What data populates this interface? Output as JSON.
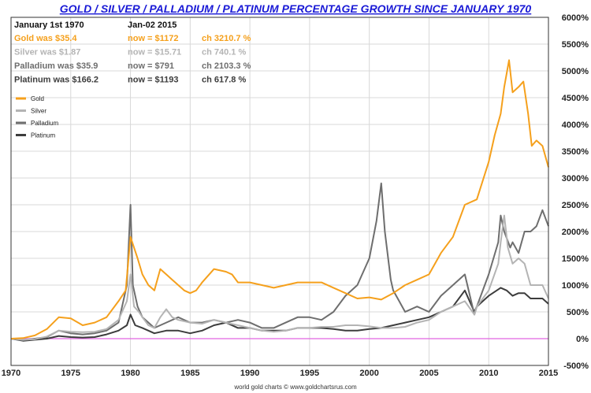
{
  "chart_data": {
    "type": "line",
    "title": "GOLD / SILVER / PALLADIUM / PLATINUM PERCENTAGE GROWTH SINCE JANUARY 1970",
    "footer": "world gold charts © www.goldchartsrus.com",
    "xlabel": "",
    "ylabel": "",
    "xlim": [
      1970,
      2015
    ],
    "ylim": [
      -500,
      6000
    ],
    "x_ticks": [
      "1970",
      "1975",
      "1980",
      "1985",
      "1990",
      "1995",
      "2000",
      "2005",
      "2010",
      "2015"
    ],
    "y_ticks": [
      "6000%",
      "5500%",
      "5000%",
      "4500%",
      "4000%",
      "3500%",
      "3000%",
      "2500%",
      "2000%",
      "1500%",
      "1000%",
      "500%",
      "0%",
      "-500%"
    ],
    "info_header": {
      "start": "January 1st 1970",
      "end": "Jan-02  2015"
    },
    "info_rows": [
      {
        "was": "Gold was $35.4",
        "now": "now = $1172",
        "ch": "ch 3210.7 %",
        "color": "#f5a01c"
      },
      {
        "was": "Silver was $1.87",
        "now": "now = $15.71",
        "ch": "ch 740.1 %",
        "color": "#b4b4b4"
      },
      {
        "was": "Palladium was $35.9",
        "now": "now = $791",
        "ch": "ch 2103.3 %",
        "color": "#6e6e6e"
      },
      {
        "was": "Platinum was $166.2",
        "now": "now = $1193",
        "ch": "ch 617.8 %",
        "color": "#3c3c3c"
      }
    ],
    "legend": [
      "Gold",
      "Silver",
      "Palladium",
      "Platinum"
    ],
    "zero_line_color": "#e066e0",
    "series": [
      {
        "name": "Gold",
        "color": "#f5a01c",
        "points": [
          [
            1970,
            0
          ],
          [
            1971,
            10
          ],
          [
            1972,
            60
          ],
          [
            1973,
            180
          ],
          [
            1974,
            400
          ],
          [
            1975,
            380
          ],
          [
            1976,
            250
          ],
          [
            1977,
            300
          ],
          [
            1978,
            400
          ],
          [
            1979,
            700
          ],
          [
            1979.6,
            900
          ],
          [
            1980.0,
            1900
          ],
          [
            1980.3,
            1700
          ],
          [
            1980.6,
            1500
          ],
          [
            1981,
            1200
          ],
          [
            1981.5,
            1000
          ],
          [
            1982,
            900
          ],
          [
            1982.5,
            1300
          ],
          [
            1983,
            1200
          ],
          [
            1983.5,
            1100
          ],
          [
            1984,
            1000
          ],
          [
            1984.5,
            900
          ],
          [
            1985,
            850
          ],
          [
            1985.5,
            900
          ],
          [
            1986,
            1050
          ],
          [
            1987,
            1300
          ],
          [
            1988,
            1250
          ],
          [
            1988.5,
            1200
          ],
          [
            1989,
            1050
          ],
          [
            1990,
            1050
          ],
          [
            1991,
            1000
          ],
          [
            1992,
            950
          ],
          [
            1993,
            1000
          ],
          [
            1994,
            1050
          ],
          [
            1995,
            1050
          ],
          [
            1996,
            1050
          ],
          [
            1997,
            950
          ],
          [
            1998,
            850
          ],
          [
            1999,
            750
          ],
          [
            2000,
            770
          ],
          [
            2001,
            730
          ],
          [
            2002,
            850
          ],
          [
            2003,
            1000
          ],
          [
            2004,
            1100
          ],
          [
            2005,
            1200
          ],
          [
            2006,
            1600
          ],
          [
            2007,
            1900
          ],
          [
            2008,
            2500
          ],
          [
            2009,
            2600
          ],
          [
            2010,
            3300
          ],
          [
            2010.5,
            3800
          ],
          [
            2011,
            4200
          ],
          [
            2011.3,
            4700
          ],
          [
            2011.7,
            5200
          ],
          [
            2012,
            4600
          ],
          [
            2012.5,
            4700
          ],
          [
            2012.9,
            4800
          ],
          [
            2013.3,
            4200
          ],
          [
            2013.6,
            3600
          ],
          [
            2014,
            3700
          ],
          [
            2014.5,
            3600
          ],
          [
            2015,
            3200
          ]
        ]
      },
      {
        "name": "Silver",
        "color": "#b4b4b4",
        "points": [
          [
            1970,
            0
          ],
          [
            1971,
            -20
          ],
          [
            1972,
            -10
          ],
          [
            1973,
            40
          ],
          [
            1974,
            150
          ],
          [
            1975,
            130
          ],
          [
            1976,
            120
          ],
          [
            1977,
            130
          ],
          [
            1978,
            180
          ],
          [
            1979,
            350
          ],
          [
            1979.7,
            700
          ],
          [
            1980.0,
            1200
          ],
          [
            1980.3,
            600
          ],
          [
            1980.7,
            500
          ],
          [
            1981,
            400
          ],
          [
            1981.5,
            250
          ],
          [
            1982,
            200
          ],
          [
            1982.5,
            400
          ],
          [
            1983,
            550
          ],
          [
            1983.5,
            400
          ],
          [
            1984,
            350
          ],
          [
            1985,
            300
          ],
          [
            1986,
            280
          ],
          [
            1987,
            350
          ],
          [
            1988,
            300
          ],
          [
            1989,
            250
          ],
          [
            1990,
            200
          ],
          [
            1991,
            150
          ],
          [
            1992,
            130
          ],
          [
            1993,
            150
          ],
          [
            1994,
            200
          ],
          [
            1995,
            200
          ],
          [
            1996,
            220
          ],
          [
            1997,
            220
          ],
          [
            1998,
            250
          ],
          [
            1999,
            250
          ],
          [
            2000,
            230
          ],
          [
            2001,
            200
          ],
          [
            2002,
            200
          ],
          [
            2003,
            220
          ],
          [
            2004,
            300
          ],
          [
            2005,
            350
          ],
          [
            2006,
            500
          ],
          [
            2007,
            600
          ],
          [
            2008,
            700
          ],
          [
            2008.8,
            450
          ],
          [
            2009,
            600
          ],
          [
            2010,
            900
          ],
          [
            2010.8,
            1400
          ],
          [
            2011,
            1800
          ],
          [
            2011.3,
            2300
          ],
          [
            2011.6,
            1700
          ],
          [
            2012,
            1400
          ],
          [
            2012.5,
            1500
          ],
          [
            2013,
            1400
          ],
          [
            2013.5,
            1000
          ],
          [
            2014,
            1000
          ],
          [
            2014.5,
            1000
          ],
          [
            2015,
            750
          ]
        ]
      },
      {
        "name": "Palladium",
        "color": "#6e6e6e",
        "points": [
          [
            1970,
            0
          ],
          [
            1971,
            -30
          ],
          [
            1972,
            0
          ],
          [
            1973,
            30
          ],
          [
            1974,
            150
          ],
          [
            1975,
            100
          ],
          [
            1976,
            80
          ],
          [
            1977,
            100
          ],
          [
            1978,
            150
          ],
          [
            1979,
            300
          ],
          [
            1979.7,
            1000
          ],
          [
            1980.0,
            2500
          ],
          [
            1980.2,
            1000
          ],
          [
            1980.6,
            600
          ],
          [
            1981,
            400
          ],
          [
            1982,
            200
          ],
          [
            1983,
            300
          ],
          [
            1984,
            400
          ],
          [
            1985,
            300
          ],
          [
            1986,
            300
          ],
          [
            1987,
            350
          ],
          [
            1988,
            300
          ],
          [
            1989,
            350
          ],
          [
            1990,
            300
          ],
          [
            1991,
            200
          ],
          [
            1992,
            200
          ],
          [
            1993,
            300
          ],
          [
            1994,
            400
          ],
          [
            1995,
            400
          ],
          [
            1996,
            350
          ],
          [
            1997,
            500
          ],
          [
            1998,
            800
          ],
          [
            1999,
            1000
          ],
          [
            2000,
            1500
          ],
          [
            2000.6,
            2200
          ],
          [
            2001.0,
            2900
          ],
          [
            2001.3,
            2000
          ],
          [
            2001.8,
            1100
          ],
          [
            2002,
            900
          ],
          [
            2002.5,
            700
          ],
          [
            2003,
            500
          ],
          [
            2004,
            600
          ],
          [
            2005,
            500
          ],
          [
            2006,
            800
          ],
          [
            2007,
            1000
          ],
          [
            2008,
            1200
          ],
          [
            2008.8,
            450
          ],
          [
            2009,
            600
          ],
          [
            2010,
            1200
          ],
          [
            2010.8,
            1800
          ],
          [
            2011,
            2300
          ],
          [
            2011.3,
            2000
          ],
          [
            2011.8,
            1700
          ],
          [
            2012,
            1800
          ],
          [
            2012.5,
            1600
          ],
          [
            2013,
            2000
          ],
          [
            2013.5,
            2000
          ],
          [
            2014,
            2100
          ],
          [
            2014.5,
            2400
          ],
          [
            2015,
            2100
          ]
        ]
      },
      {
        "name": "Platinum",
        "color": "#3c3c3c",
        "points": [
          [
            1970,
            0
          ],
          [
            1971,
            -40
          ],
          [
            1972,
            -20
          ],
          [
            1973,
            0
          ],
          [
            1974,
            50
          ],
          [
            1975,
            30
          ],
          [
            1976,
            20
          ],
          [
            1977,
            30
          ],
          [
            1978,
            80
          ],
          [
            1979,
            150
          ],
          [
            1979.7,
            250
          ],
          [
            1980.0,
            450
          ],
          [
            1980.4,
            250
          ],
          [
            1981,
            200
          ],
          [
            1982,
            100
          ],
          [
            1983,
            150
          ],
          [
            1984,
            150
          ],
          [
            1985,
            100
          ],
          [
            1986,
            150
          ],
          [
            1987,
            250
          ],
          [
            1988,
            300
          ],
          [
            1989,
            200
          ],
          [
            1990,
            200
          ],
          [
            1991,
            150
          ],
          [
            1992,
            150
          ],
          [
            1993,
            150
          ],
          [
            1994,
            200
          ],
          [
            1995,
            200
          ],
          [
            1996,
            200
          ],
          [
            1997,
            180
          ],
          [
            1998,
            150
          ],
          [
            1999,
            150
          ],
          [
            2000,
            180
          ],
          [
            2001,
            200
          ],
          [
            2002,
            250
          ],
          [
            2003,
            300
          ],
          [
            2004,
            350
          ],
          [
            2005,
            400
          ],
          [
            2006,
            500
          ],
          [
            2007,
            600
          ],
          [
            2008,
            900
          ],
          [
            2008.8,
            500
          ],
          [
            2009,
            600
          ],
          [
            2010,
            800
          ],
          [
            2011,
            950
          ],
          [
            2011.5,
            900
          ],
          [
            2012,
            800
          ],
          [
            2012.5,
            850
          ],
          [
            2013,
            850
          ],
          [
            2013.5,
            750
          ],
          [
            2014,
            750
          ],
          [
            2014.5,
            750
          ],
          [
            2015,
            650
          ]
        ]
      }
    ]
  }
}
